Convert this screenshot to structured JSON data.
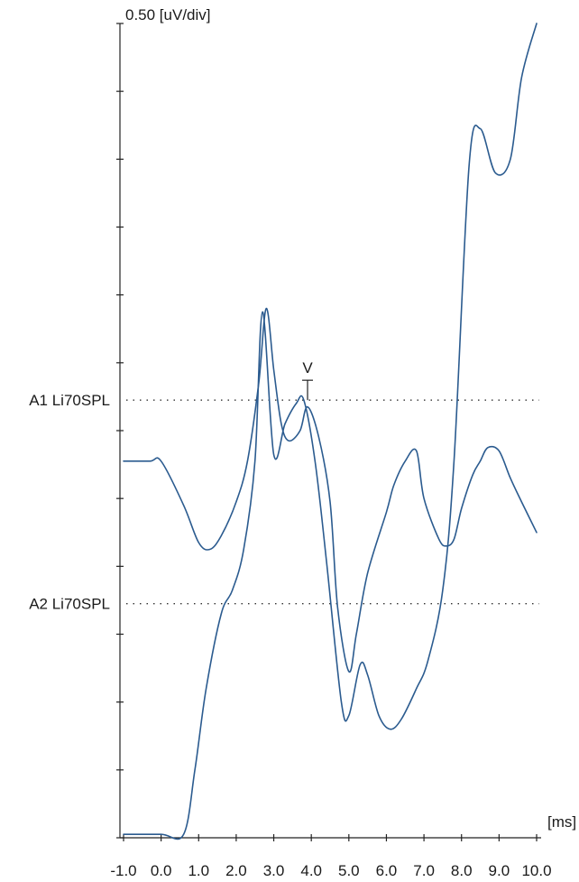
{
  "chart_data": {
    "type": "line",
    "scale_label": "0.50 [uV/div]",
    "x_unit_label": "[ms]",
    "xlim": [
      -1.0,
      10.0
    ],
    "y_divisions": 12,
    "x_ticks": [
      "-1.0",
      "0.0",
      "1.0",
      "2.0",
      "3.0",
      "4.0",
      "5.0",
      "6.0",
      "7.0",
      "8.0",
      "9.0",
      "10.0"
    ],
    "y_unit_note": "divisions (0.50 uV each), 0 = bottom of plot",
    "series": [
      {
        "name": "A1 Li70SPL",
        "baseline_div": 6.45,
        "x": [
          -1.0,
          -0.3,
          0.0,
          0.6,
          1.0,
          1.3,
          1.6,
          2.0,
          2.3,
          2.6,
          2.8,
          3.0,
          3.2,
          3.4,
          3.7,
          3.9,
          4.2,
          4.5,
          4.7,
          5.0,
          5.2,
          5.5,
          6.0,
          6.2,
          6.5,
          6.8,
          7.0,
          7.4,
          7.6,
          7.8,
          8.0,
          8.3,
          8.5,
          8.7,
          9.0,
          9.3,
          9.6,
          10.0
        ],
        "y": [
          5.55,
          5.55,
          5.55,
          4.9,
          4.35,
          4.25,
          4.45,
          4.95,
          5.55,
          6.7,
          7.8,
          6.9,
          6.1,
          5.85,
          6.0,
          6.35,
          5.9,
          4.95,
          3.4,
          2.45,
          3.0,
          3.9,
          4.8,
          5.2,
          5.55,
          5.7,
          5.0,
          4.4,
          4.3,
          4.4,
          4.85,
          5.35,
          5.55,
          5.75,
          5.7,
          5.3,
          4.95,
          4.5
        ]
      },
      {
        "name": "A2 Li70SPL",
        "baseline_div": 3.45,
        "x": [
          -1.0,
          0.0,
          0.6,
          0.9,
          1.2,
          1.6,
          1.9,
          2.2,
          2.5,
          2.7,
          3.0,
          3.3,
          3.6,
          3.8,
          4.1,
          4.4,
          4.8,
          5.0,
          5.3,
          5.5,
          5.8,
          6.1,
          6.4,
          6.8,
          7.1,
          7.5,
          7.8,
          8.2,
          8.5,
          8.9,
          9.3,
          9.6,
          10.0
        ],
        "y": [
          0.05,
          0.05,
          0.05,
          1.0,
          2.2,
          3.3,
          3.65,
          4.25,
          5.55,
          7.75,
          5.65,
          6.1,
          6.4,
          6.45,
          5.55,
          4.1,
          2.0,
          1.8,
          2.55,
          2.4,
          1.8,
          1.6,
          1.75,
          2.2,
          2.6,
          3.65,
          5.55,
          9.9,
          10.45,
          9.8,
          10.0,
          11.2,
          12.0
        ]
      }
    ],
    "annotations": [
      {
        "label": "V",
        "x": 3.9
      }
    ],
    "grid": false,
    "legend": "left labels"
  }
}
